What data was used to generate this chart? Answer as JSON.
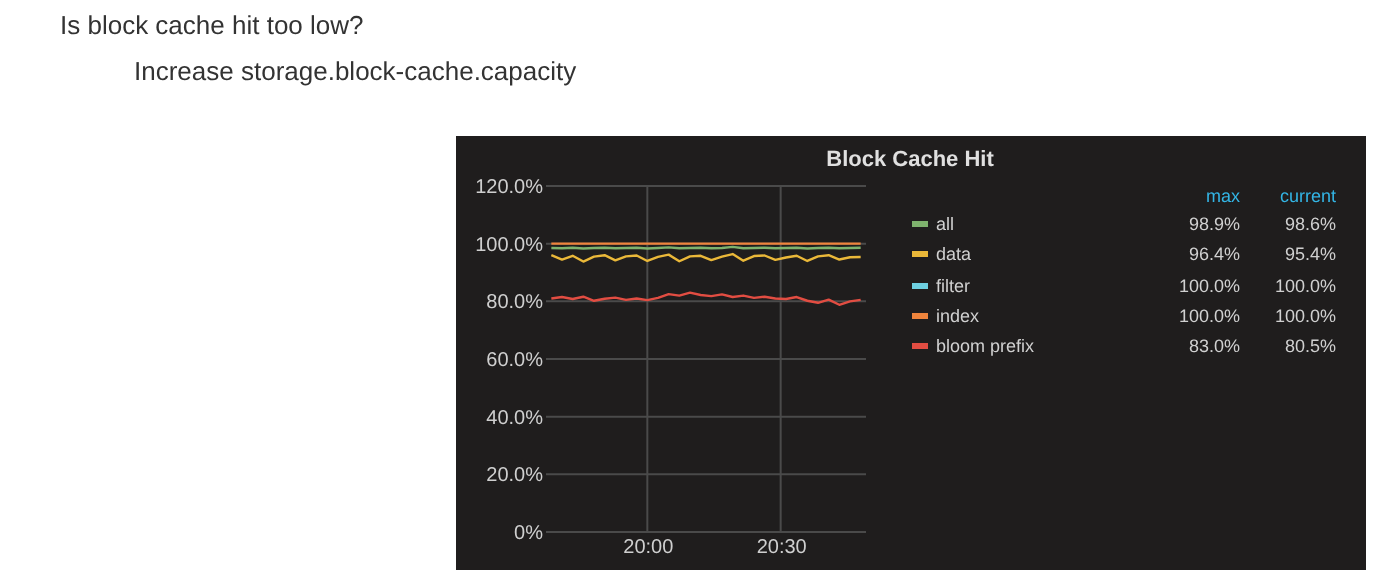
{
  "chart_data": {
    "type": "line",
    "title": "Block Cache Hit",
    "annotations": [
      "Is block cache hit too low?",
      "Increase storage.block-cache.capacity",
      "max",
      "current",
      "98.9%",
      "98.6%",
      "96.4%",
      "95.4%",
      "100.0%",
      "100.0%",
      "100.0%",
      "100.0%",
      "83.0%",
      "80.5%"
    ],
    "x": [
      19.64,
      19.68,
      19.72,
      19.76,
      19.8,
      19.84,
      19.88,
      19.92,
      19.96,
      20.0,
      20.04,
      20.08,
      20.12,
      20.16,
      20.2,
      20.24,
      20.28,
      20.32,
      20.36,
      20.4,
      20.44,
      20.48,
      20.52,
      20.56,
      20.6,
      20.64,
      20.68,
      20.72,
      20.76,
      20.8
    ],
    "series": [
      {
        "name": "all",
        "color": "#7eb26d",
        "values": [
          98.5,
          98.4,
          98.6,
          98.3,
          98.5,
          98.6,
          98.4,
          98.5,
          98.6,
          98.3,
          98.5,
          98.7,
          98.4,
          98.5,
          98.6,
          98.4,
          98.5,
          98.9,
          98.4,
          98.5,
          98.6,
          98.4,
          98.5,
          98.6,
          98.3,
          98.5,
          98.6,
          98.4,
          98.5,
          98.6
        ]
      },
      {
        "name": "data",
        "color": "#eab839",
        "values": [
          96.0,
          94.5,
          95.8,
          93.8,
          95.5,
          96.0,
          94.2,
          95.6,
          95.9,
          94.0,
          95.4,
          96.2,
          93.9,
          95.6,
          95.8,
          94.3,
          95.5,
          96.4,
          94.1,
          95.7,
          95.9,
          94.4,
          95.2,
          95.8,
          94.0,
          95.6,
          96.0,
          94.5,
          95.3,
          95.4
        ]
      },
      {
        "name": "filter",
        "color": "#6ed0e0",
        "values": [
          null,
          null,
          null,
          null,
          null,
          null,
          null,
          null,
          null,
          null,
          null,
          null,
          null,
          null,
          null,
          null,
          null,
          null,
          null,
          null,
          null,
          null,
          null,
          null,
          null,
          null,
          null,
          null,
          null,
          null
        ]
      },
      {
        "name": "index",
        "color": "#ef843c",
        "values": [
          100,
          100,
          100,
          100,
          100,
          100,
          100,
          100,
          100,
          100,
          100,
          100,
          100,
          100,
          100,
          100,
          100,
          100,
          100,
          100,
          100,
          100,
          100,
          100,
          100,
          100,
          100,
          100,
          100,
          100
        ]
      },
      {
        "name": "bloom prefix",
        "color": "#e24d42",
        "values": [
          81.0,
          81.5,
          80.8,
          81.6,
          80.2,
          80.9,
          81.3,
          80.5,
          81.0,
          80.4,
          81.2,
          82.5,
          82.0,
          83.0,
          82.2,
          81.8,
          82.4,
          81.5,
          82.0,
          81.2,
          81.6,
          81.0,
          80.8,
          81.5,
          80.2,
          79.5,
          80.6,
          78.8,
          80.0,
          80.5
        ]
      }
    ],
    "xlim": [
      19.62,
      20.82
    ],
    "xticks": [
      {
        "value": 20,
        "label": "20:00"
      },
      {
        "value": 20.5,
        "label": "20:30"
      }
    ],
    "ylim": [
      0,
      120
    ],
    "yticks": [
      {
        "value": 0,
        "label": "0%"
      },
      {
        "value": 20,
        "label": "20.0%"
      },
      {
        "value": 40,
        "label": "40.0%"
      },
      {
        "value": 60,
        "label": "60.0%"
      },
      {
        "value": 80,
        "label": "80.0%"
      },
      {
        "value": 100,
        "label": "100.0%"
      },
      {
        "value": 120,
        "label": "120.0%"
      }
    ],
    "grid": true,
    "legend": "right",
    "marker": "none",
    "line_style": "solid"
  }
}
